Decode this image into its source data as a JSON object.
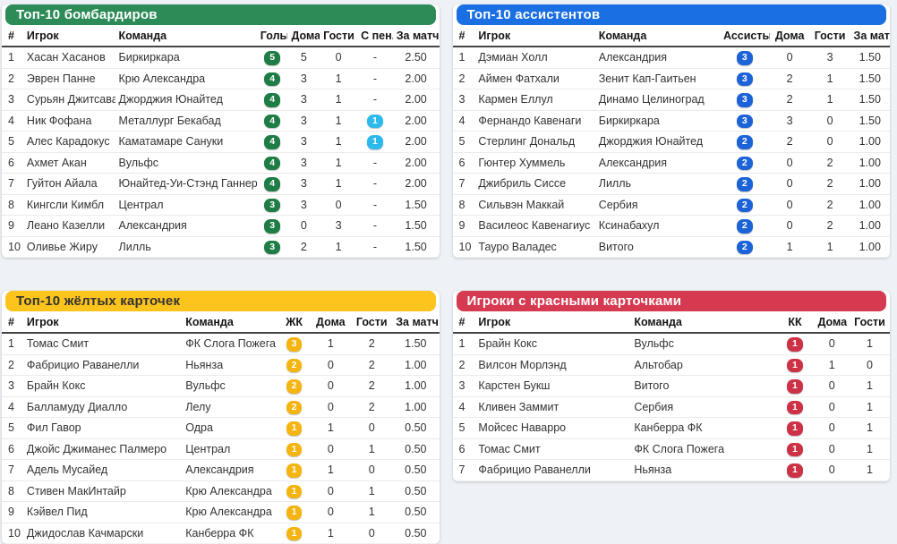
{
  "page": {
    "background": "#eef1f6"
  },
  "cards": [
    {
      "title": "Топ-10 бомбардиров",
      "colors": {
        "header_bg": "#2d8b57",
        "header_text": "#ffffff",
        "badge": "#1e7c45",
        "pen_badge": "#2cb9ec"
      },
      "columns": [
        "#",
        "Игрок",
        "Команда",
        "Голы",
        "Дома",
        "Гости",
        "С пен.",
        "За матч"
      ],
      "badge_col": 3,
      "pen_col": 6,
      "rows": [
        [
          "1",
          "Хасан Хасанов",
          "Биркиркара",
          "5",
          "5",
          "0",
          "-",
          "2.50"
        ],
        [
          "2",
          "Эврен Панне",
          "Крю Александра",
          "4",
          "3",
          "1",
          "-",
          "2.00"
        ],
        [
          "3",
          "Сурьян Джитсават",
          "Джорджия Юнайтед",
          "4",
          "3",
          "1",
          "-",
          "2.00"
        ],
        [
          "4",
          "Ник Фофана",
          "Металлург Бекабад",
          "4",
          "3",
          "1",
          "1",
          "2.00"
        ],
        [
          "5",
          "Алес Карадокус",
          "Каматамаре Сануки",
          "4",
          "3",
          "1",
          "1",
          "2.00"
        ],
        [
          "6",
          "Ахмет Акан",
          "Вульфс",
          "4",
          "3",
          "1",
          "-",
          "2.00"
        ],
        [
          "7",
          "Гуйтон Айала",
          "Юнайтед-Уи-Стэнд Ганнерз",
          "4",
          "3",
          "1",
          "-",
          "2.00"
        ],
        [
          "8",
          "Кингсли Кимбл",
          "Централ",
          "3",
          "3",
          "0",
          "-",
          "1.50"
        ],
        [
          "9",
          "Леано Казелли",
          "Александрия",
          "3",
          "0",
          "3",
          "-",
          "1.50"
        ],
        [
          "10",
          "Оливье Жиру",
          "Лилль",
          "3",
          "2",
          "1",
          "-",
          "1.50"
        ]
      ]
    },
    {
      "title": "Топ-10 ассистентов",
      "colors": {
        "header_bg": "#1a6fe2",
        "header_text": "#ffffff",
        "badge": "#1d63d8"
      },
      "columns": [
        "#",
        "Игрок",
        "Команда",
        "Ассисты",
        "Дома",
        "Гости",
        "За матч"
      ],
      "badge_col": 3,
      "rows": [
        [
          "1",
          "Дэмиан Холл",
          "Александрия",
          "3",
          "0",
          "3",
          "1.50"
        ],
        [
          "2",
          "Аймен Фатхали",
          "Зенит Кап-Гаитьен",
          "3",
          "2",
          "1",
          "1.50"
        ],
        [
          "3",
          "Кармен Еллул",
          "Динамо Целиноград",
          "3",
          "2",
          "1",
          "1.50"
        ],
        [
          "4",
          "Фернандо Кавенаги",
          "Биркиркара",
          "3",
          "3",
          "0",
          "1.50"
        ],
        [
          "5",
          "Стерлинг Дональд",
          "Джорджия Юнайтед",
          "2",
          "2",
          "0",
          "1.00"
        ],
        [
          "6",
          "Гюнтер Хуммель",
          "Александрия",
          "2",
          "0",
          "2",
          "1.00"
        ],
        [
          "7",
          "Джибриль Сиссе",
          "Лилль",
          "2",
          "0",
          "2",
          "1.00"
        ],
        [
          "8",
          "Сильвэн Маккай",
          "Сербия",
          "2",
          "0",
          "2",
          "1.00"
        ],
        [
          "9",
          "Василеос Кавенагиус",
          "Ксинабахул",
          "2",
          "0",
          "2",
          "1.00"
        ],
        [
          "10",
          "Тауро Валадес",
          "Витого",
          "2",
          "1",
          "1",
          "1.00"
        ]
      ]
    },
    {
      "title": "Топ-10 жёлтых карточек",
      "colors": {
        "header_bg": "#fcc41d",
        "header_text": "#333333",
        "badge": "#f5b40f"
      },
      "columns": [
        "#",
        "Игрок",
        "Команда",
        "ЖК",
        "Дома",
        "Гости",
        "За матч"
      ],
      "badge_col": 3,
      "rows": [
        [
          "1",
          "Томас Смит",
          "ФК Слога Пожега",
          "3",
          "1",
          "2",
          "1.50"
        ],
        [
          "2",
          "Фабрицио Раванелли",
          "Ньянза",
          "2",
          "0",
          "2",
          "1.00"
        ],
        [
          "3",
          "Брайн Кокс",
          "Вульфс",
          "2",
          "0",
          "2",
          "1.00"
        ],
        [
          "4",
          "Балламуду Диалло",
          "Лелу",
          "2",
          "0",
          "2",
          "1.00"
        ],
        [
          "5",
          "Фил Гавор",
          "Одра",
          "1",
          "1",
          "0",
          "0.50"
        ],
        [
          "6",
          "Джойс Джиманес Палмеро",
          "Централ",
          "1",
          "0",
          "1",
          "0.50"
        ],
        [
          "7",
          "Адель Мусайед",
          "Александрия",
          "1",
          "1",
          "0",
          "0.50"
        ],
        [
          "8",
          "Стивен МакИнтайр",
          "Крю Александра",
          "1",
          "0",
          "1",
          "0.50"
        ],
        [
          "9",
          "Кэйвел Пид",
          "Крю Александра",
          "1",
          "0",
          "1",
          "0.50"
        ],
        [
          "10",
          "Джидослав Качмарски",
          "Канберра ФК",
          "1",
          "1",
          "0",
          "0.50"
        ]
      ]
    },
    {
      "title": "Игроки с красными карточками",
      "colors": {
        "header_bg": "#d53a50",
        "header_text": "#ffffff",
        "badge": "#cc3146"
      },
      "columns": [
        "#",
        "Игрок",
        "Команда",
        "КК",
        "Дома",
        "Гости"
      ],
      "badge_col": 3,
      "rows": [
        [
          "1",
          "Брайн Кокс",
          "Вульфс",
          "1",
          "0",
          "1"
        ],
        [
          "2",
          "Вилсон Морлэнд",
          "Альтобар",
          "1",
          "1",
          "0"
        ],
        [
          "3",
          "Карстен Букш",
          "Витого",
          "1",
          "0",
          "1"
        ],
        [
          "4",
          "Кливен Заммит",
          "Сербия",
          "1",
          "0",
          "1"
        ],
        [
          "5",
          "Мойсес Наварро",
          "Канберра ФК",
          "1",
          "0",
          "1"
        ],
        [
          "6",
          "Томас Смит",
          "ФК Слога Пожега",
          "1",
          "0",
          "1"
        ],
        [
          "7",
          "Фабрицио Раванелли",
          "Ньянза",
          "1",
          "0",
          "1"
        ]
      ]
    }
  ]
}
